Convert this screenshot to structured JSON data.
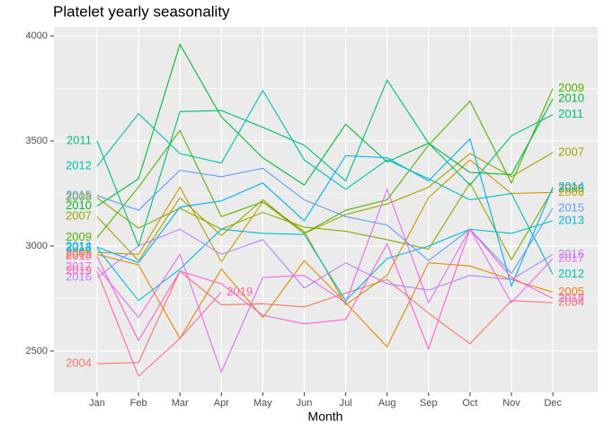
{
  "chart_data": {
    "type": "line",
    "title": "Platelet yearly seasonality",
    "x_label": "Month",
    "categories": [
      "Jan",
      "Feb",
      "Mar",
      "Apr",
      "May",
      "Jun",
      "Jul",
      "Aug",
      "Sep",
      "Oct",
      "Nov",
      "Dec"
    ],
    "ylim": [
      2303,
      4043
    ],
    "yticks": [
      2500,
      3000,
      3500,
      4000
    ],
    "grid": true,
    "series": [
      {
        "name": "2004",
        "color": "#F8766D",
        "values": [
          2440,
          2445,
          2880,
          2720,
          2725,
          2710,
          2775,
          2840,
          2680,
          2535,
          2740,
          2730
        ]
      },
      {
        "name": "2005",
        "color": "#E58700",
        "values": [
          2960,
          2910,
          2560,
          2890,
          2660,
          2930,
          2730,
          2520,
          2920,
          2905,
          2840,
          2780
        ]
      },
      {
        "name": "2006",
        "color": "#C99800",
        "values": [
          2970,
          2960,
          3280,
          2925,
          3210,
          3070,
          2720,
          2860,
          3230,
          3410,
          3250,
          3255
        ]
      },
      {
        "name": "2007",
        "color": "#A3A500",
        "values": [
          3140,
          2930,
          3230,
          3050,
          3220,
          3060,
          3150,
          3200,
          3280,
          3440,
          3330,
          3445
        ]
      },
      {
        "name": "2008",
        "color": "#8DA800",
        "values": [
          3230,
          3085,
          3180,
          3080,
          3160,
          3090,
          3070,
          3030,
          2985,
          3300,
          2935,
          3270
        ]
      },
      {
        "name": "2009",
        "color": "#53B400",
        "values": [
          3040,
          3280,
          3550,
          3140,
          3210,
          3060,
          3170,
          3220,
          3480,
          3690,
          3300,
          3750
        ]
      },
      {
        "name": "2010",
        "color": "#00BA38",
        "values": [
          3190,
          3320,
          3960,
          3615,
          3420,
          3290,
          3580,
          3400,
          3490,
          3350,
          3340,
          3700
        ]
      },
      {
        "name": "2011",
        "color": "#00BF7D",
        "values": [
          3500,
          3000,
          3640,
          3645,
          3565,
          3480,
          3310,
          3790,
          3490,
          3290,
          3525,
          3625
        ]
      },
      {
        "name": "2012",
        "color": "#00C0AF",
        "values": [
          3380,
          3630,
          3440,
          3395,
          3740,
          3410,
          3270,
          3410,
          3320,
          3220,
          3250,
          2865
        ]
      },
      {
        "name": "2013",
        "color": "#00BCD8",
        "values": [
          2990,
          2740,
          2890,
          3080,
          3060,
          3055,
          2740,
          2940,
          3000,
          3080,
          3060,
          3120
        ]
      },
      {
        "name": "2014",
        "color": "#00B0F6",
        "values": [
          2995,
          2920,
          3185,
          3215,
          3300,
          3120,
          3430,
          3420,
          3310,
          3510,
          2810,
          3280
        ]
      },
      {
        "name": "2015",
        "color": "#619CFF",
        "values": [
          3240,
          3170,
          3360,
          3330,
          3370,
          3220,
          3140,
          3100,
          2930,
          3080,
          2870,
          3180
        ]
      },
      {
        "name": "2016",
        "color": "#B983FF",
        "values": [
          2850,
          3000,
          3080,
          2960,
          3030,
          2800,
          2920,
          2820,
          2790,
          2860,
          2840,
          2960
        ]
      },
      {
        "name": "2017",
        "color": "#E76BF3",
        "values": [
          2900,
          2660,
          2960,
          2400,
          2850,
          2860,
          2730,
          3270,
          2730,
          3080,
          2730,
          2940
        ]
      },
      {
        "name": "2018",
        "color": "#FD61D1",
        "values": [
          2950,
          2550,
          2880,
          2820,
          2670,
          2630,
          2650,
          3010,
          2510,
          3080,
          2850,
          2750
        ]
      },
      {
        "name": "2019",
        "color": "#FF67A4",
        "values": [
          2880,
          2380,
          2560,
          2780,
          null,
          null,
          null,
          null,
          null,
          null,
          null,
          null
        ]
      }
    ]
  }
}
